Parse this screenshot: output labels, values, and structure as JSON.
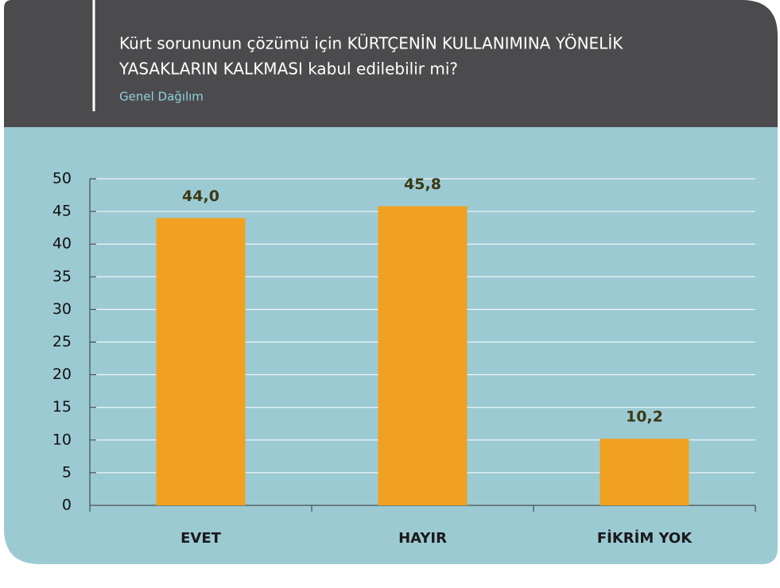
{
  "chart_data": {
    "type": "bar",
    "title": [
      "Kürt sorununun çözümü için KÜRTÇENİN KULLANIMINA YÖNELİK",
      "YASAKLARIN KALKMASI kabul edilebilir mi?"
    ],
    "subtitle": "Genel Dağılım",
    "categories": [
      "EVET",
      "HAYIR",
      "FİKRİM YOK"
    ],
    "values": [
      44.0,
      45.8,
      10.2
    ],
    "value_labels": [
      "44,0",
      "45,8",
      "10,2"
    ],
    "color": "#f0a121",
    "ylim": [
      0,
      50
    ],
    "yticks": [
      0,
      5,
      10,
      15,
      20,
      25,
      30,
      35,
      40,
      45,
      50
    ],
    "grid": true
  }
}
